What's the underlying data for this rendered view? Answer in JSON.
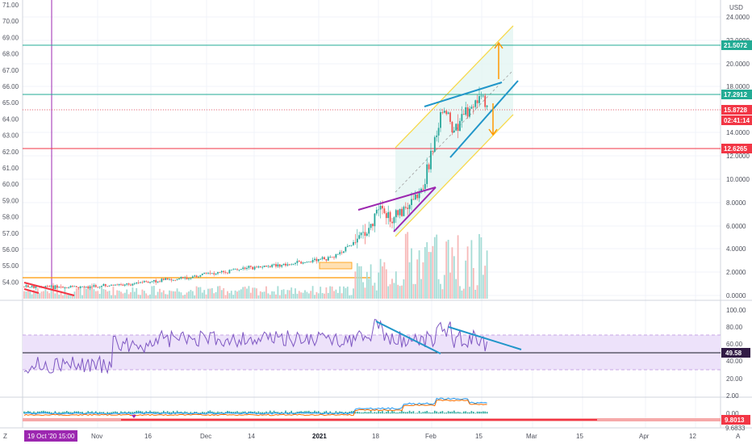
{
  "left_axis": {
    "ticks": [
      "71.00",
      "70.00",
      "69.00",
      "68.00",
      "67.00",
      "66.00",
      "65.00",
      "64.00",
      "63.00",
      "62.00",
      "61.00",
      "60.00",
      "59.00",
      "58.00",
      "57.00",
      "56.00",
      "55.00",
      "54.00"
    ]
  },
  "right_axis": {
    "currency": "USD",
    "ticks": [
      "24.0000",
      "22.0000",
      "20.0000",
      "18.0000",
      "16.0000",
      "14.0000",
      "12.0000",
      "10.0000",
      "8.0000",
      "6.0000",
      "4.0000",
      "2.0000",
      "0.0000"
    ]
  },
  "price_badges": [
    {
      "label": "21.5072",
      "color": "#22ab94"
    },
    {
      "label": "17.2912",
      "color": "#22ab94"
    },
    {
      "label": "15.8728",
      "color": "#f23645"
    },
    {
      "label": "02:41:14",
      "color": "#f23645"
    },
    {
      "label": "12.6265",
      "color": "#f23645"
    }
  ],
  "rsi_pane": {
    "ticks": [
      "100.00",
      "80.00",
      "60.00",
      "40.00",
      "20.00"
    ],
    "value_badge": {
      "label": "49.58",
      "color": "#311b45"
    }
  },
  "macd_pane": {
    "ticks": [
      "2.00",
      "0.00"
    ],
    "value_badge": {
      "label": "9.8013",
      "color": "#f23645"
    },
    "sub_label": "9.6833"
  },
  "time_axis": {
    "cursor_label": "19 Oct '20  15:00",
    "labels": [
      "Nov",
      "16",
      "Dec",
      "14",
      "2021",
      "18",
      "Feb",
      "15",
      "Mar",
      "15",
      "Apr",
      "12"
    ]
  },
  "corner": {
    "left": "Z",
    "right": "A"
  },
  "colors": {
    "up": "#26a69a",
    "down": "#ef5350",
    "channel": "#fbe97a",
    "wedge": "#2196c9",
    "triangle": "#9c27b0"
  }
}
